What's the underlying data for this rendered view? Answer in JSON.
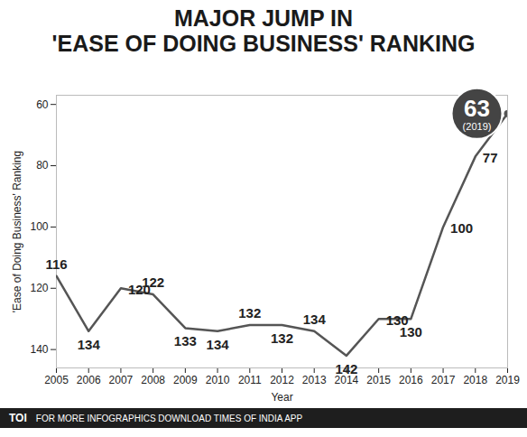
{
  "chart_data": {
    "type": "line",
    "title": [
      "MAJOR JUMP IN",
      "'EASE OF DOING BUSINESS' RANKING"
    ],
    "x_label": "Year",
    "y_label": "'Ease of Doing Business' Ranking",
    "x": [
      2005,
      2006,
      2007,
      2008,
      2009,
      2010,
      2011,
      2012,
      2013,
      2014,
      2015,
      2016,
      2017,
      2018,
      2019
    ],
    "values": [
      116,
      134,
      120,
      122,
      133,
      134,
      132,
      132,
      134,
      142,
      130,
      130,
      100,
      77,
      63
    ],
    "color": "#555555",
    "xlim": [
      2005,
      2019
    ],
    "xticks": [
      2005,
      2006,
      2007,
      2008,
      2009,
      2010,
      2011,
      2012,
      2013,
      2014,
      2015,
      2016,
      2017,
      2018,
      2019
    ],
    "ylim": [
      57,
      146
    ],
    "yticks": [
      60,
      80,
      100,
      120,
      140
    ],
    "grid": false,
    "data_labels": true,
    "annotation": "(2019)",
    "footer": [
      "TOI",
      "FOR MORE INFOGRAPHICS DOWNLOAD TIMES OF INDIA APP"
    ]
  }
}
